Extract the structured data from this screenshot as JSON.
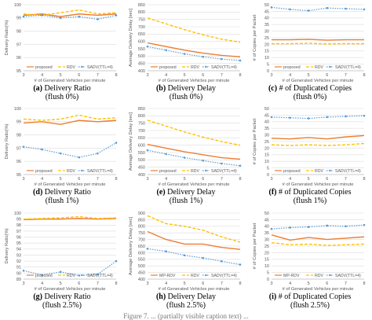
{
  "figure_footer": "Figure 7. ... (partially visible caption text) ...",
  "colors": {
    "proposed": "#ED7D31",
    "rdv": "#FFC000",
    "sadv": "#5B9BD5",
    "grid": "#dcdcdc",
    "axis": "#bfbfbf",
    "text": "#595959"
  },
  "chart_data": [
    {
      "id": "a",
      "type": "line",
      "xlabel": "# of Generated Vehicles per minute",
      "ylabel": "Delivery Ratio(%)",
      "ylim": [
        95,
        100
      ],
      "yticks": [
        95,
        96,
        97,
        98,
        99,
        100
      ],
      "x": [
        3,
        4,
        5,
        6,
        7,
        8
      ],
      "series": [
        {
          "name": "proposed",
          "style": "proposed",
          "values": [
            99.2,
            99.3,
            99.1,
            99.3,
            99.2,
            99.3
          ]
        },
        {
          "name": "RDV",
          "style": "rdv",
          "values": [
            99.3,
            99.2,
            99.4,
            99.6,
            99.3,
            99.4
          ]
        },
        {
          "name": "SADV(TTL=4)",
          "style": "sadv",
          "values": [
            99.1,
            99.2,
            99.0,
            99.1,
            98.9,
            99.2
          ]
        }
      ],
      "caption_letter": "(a)",
      "caption_title": "Delivery Ratio",
      "caption_sub": "(flush 0%)"
    },
    {
      "id": "b",
      "type": "line",
      "xlabel": "# of Generated Vehicles per minute",
      "ylabel": "Average Delivery Delay [sec]",
      "ylim": [
        400,
        850
      ],
      "yticks": [
        400,
        450,
        500,
        550,
        600,
        650,
        700,
        750,
        800,
        850
      ],
      "x": [
        3,
        4,
        5,
        6,
        7,
        8
      ],
      "series": [
        {
          "name": "proposed",
          "style": "proposed",
          "values": [
            590,
            565,
            540,
            520,
            505,
            495
          ]
        },
        {
          "name": "RDV",
          "style": "rdv",
          "values": [
            760,
            720,
            680,
            645,
            615,
            595
          ]
        },
        {
          "name": "SADV(TTL=4)",
          "style": "sadv",
          "values": [
            565,
            540,
            515,
            495,
            480,
            470
          ]
        }
      ],
      "caption_letter": "(b)",
      "caption_title": "Delivery Delay",
      "caption_sub": "(flush 0%)"
    },
    {
      "id": "c",
      "type": "line",
      "xlabel": "# of Generated Vehicles per minute",
      "ylabel": "# of Copies per Packet",
      "ylim": [
        0,
        50
      ],
      "yticks": [
        0,
        5,
        10,
        15,
        20,
        25,
        30,
        35,
        40,
        45,
        50
      ],
      "x": [
        3,
        4,
        5,
        6,
        7,
        8
      ],
      "series": [
        {
          "name": "proposed",
          "style": "proposed",
          "values": [
            23.5,
            23.5,
            23.8,
            23.2,
            23.5,
            23.5
          ]
        },
        {
          "name": "RDV",
          "style": "rdv",
          "values": [
            20.5,
            20.5,
            20.8,
            20.3,
            20.5,
            20.5
          ]
        },
        {
          "name": "SADV(TTL=4)",
          "style": "sadv",
          "values": [
            48,
            46.5,
            45.5,
            47.5,
            47,
            46.5
          ]
        }
      ],
      "caption_letter": "(c)",
      "caption_title": "# of Duplicated Copies",
      "caption_sub": "(flush 0%)"
    },
    {
      "id": "d",
      "type": "line",
      "xlabel": "# of Generated Vehicles per minute",
      "ylabel": "Delivery Ratio(%)",
      "ylim": [
        95,
        100
      ],
      "yticks": [
        95,
        96,
        97,
        98,
        99,
        100
      ],
      "x": [
        3,
        4,
        5,
        6,
        7,
        8
      ],
      "series": [
        {
          "name": "proposed",
          "style": "proposed",
          "values": [
            98.9,
            99.0,
            98.8,
            99.1,
            99.0,
            99.1
          ]
        },
        {
          "name": "RDV",
          "style": "rdv",
          "values": [
            99.2,
            99.1,
            99.2,
            99.5,
            99.2,
            99.3
          ]
        },
        {
          "name": "SADV(TTL=4)",
          "style": "sadv",
          "values": [
            97.1,
            96.9,
            96.6,
            96.3,
            96.6,
            97.4
          ]
        }
      ],
      "caption_letter": "(d)",
      "caption_title": "Delivery Ratio",
      "caption_sub": "(flush 1%)"
    },
    {
      "id": "e",
      "type": "line",
      "xlabel": "# of Generated Vehicles per minute",
      "ylabel": "Average Delivery Delay [sec]",
      "ylim": [
        400,
        850
      ],
      "yticks": [
        400,
        450,
        500,
        550,
        600,
        650,
        700,
        750,
        800,
        850
      ],
      "x": [
        3,
        4,
        5,
        6,
        7,
        8
      ],
      "series": [
        {
          "name": "proposed",
          "style": "proposed",
          "values": [
            605,
            580,
            555,
            535,
            515,
            505
          ]
        },
        {
          "name": "RDV",
          "style": "rdv",
          "values": [
            770,
            730,
            690,
            655,
            625,
            600
          ]
        },
        {
          "name": "SADV(TTL=4)",
          "style": "sadv",
          "values": [
            565,
            540,
            515,
            495,
            475,
            460
          ]
        }
      ],
      "caption_letter": "(e)",
      "caption_title": "Delivery Delay",
      "caption_sub": "(flush 1%)"
    },
    {
      "id": "f",
      "type": "line",
      "xlabel": "# of Generated Vehicles per minute",
      "ylabel": "# of Copies per Packet",
      "ylim": [
        0,
        50
      ],
      "yticks": [
        0,
        5,
        10,
        15,
        20,
        25,
        30,
        35,
        40,
        45,
        50
      ],
      "x": [
        3,
        4,
        5,
        6,
        7,
        8
      ],
      "series": [
        {
          "name": "proposed",
          "style": "proposed",
          "values": [
            27.5,
            27.0,
            28.0,
            27.0,
            28.5,
            29.5
          ]
        },
        {
          "name": "RDV",
          "style": "rdv",
          "values": [
            22.5,
            22.0,
            22.5,
            22.0,
            22.5,
            23.5
          ]
        },
        {
          "name": "SADV(TTL=4)",
          "style": "sadv",
          "values": [
            43.5,
            43.0,
            42.5,
            43.5,
            44.0,
            44.5
          ]
        }
      ],
      "caption_letter": "(f)",
      "caption_title": "# of Duplicated Copies",
      "caption_sub": "(flush 1%)"
    },
    {
      "id": "g",
      "type": "line",
      "xlabel": "# of Generated Vehicles per minute",
      "ylabel": "Delivery Ratio(%)",
      "ylim": [
        89,
        100
      ],
      "yticks": [
        89,
        90,
        91,
        92,
        93,
        94,
        95,
        96,
        97,
        98,
        99,
        100
      ],
      "x": [
        3,
        4,
        5,
        6,
        7,
        8
      ],
      "series": [
        {
          "name": "proposed",
          "style": "proposed",
          "values": [
            98.9,
            99.0,
            99.0,
            99.1,
            99.0,
            99.1
          ]
        },
        {
          "name": "RDV",
          "style": "rdv",
          "values": [
            99.0,
            99.1,
            99.2,
            99.4,
            99.1,
            99.2
          ]
        },
        {
          "name": "SADV(TTL=4)",
          "style": "sadv",
          "values": [
            90.4,
            89.7,
            90.2,
            89.6,
            89.8,
            92.0
          ]
        }
      ],
      "caption_letter": "(g)",
      "caption_title": "Delivery Ratio",
      "caption_sub": "(flush 2.5%)"
    },
    {
      "id": "h",
      "type": "line",
      "xlabel": "# of Generated Vehicles per minute",
      "ylabel": "Average Delivery Delay [sec]",
      "ylim": [
        400,
        900
      ],
      "yticks": [
        400,
        450,
        500,
        550,
        600,
        650,
        700,
        750,
        800,
        850,
        900
      ],
      "x": [
        3,
        4,
        5,
        6,
        7,
        8
      ],
      "series": [
        {
          "name": "MP-RDV",
          "style": "proposed",
          "values": [
            760,
            700,
            665,
            665,
            640,
            625
          ]
        },
        {
          "name": "RDV",
          "style": "rdv",
          "values": [
            880,
            820,
            800,
            770,
            720,
            680
          ]
        },
        {
          "name": "SADV(TTL=4)",
          "style": "sadv",
          "values": [
            630,
            610,
            580,
            560,
            535,
            510
          ]
        }
      ],
      "caption_letter": "(h)",
      "caption_title": "Delivery Delay",
      "caption_sub": "(flush 2.5%)"
    },
    {
      "id": "i",
      "type": "line",
      "xlabel": "# of Generated Vehicles per minute",
      "ylabel": "# of Copies per Packet",
      "ylim": [
        0,
        50
      ],
      "yticks": [
        0,
        5,
        10,
        15,
        20,
        25,
        30,
        35,
        40,
        45,
        50
      ],
      "x": [
        3,
        4,
        5,
        6,
        7,
        8
      ],
      "series": [
        {
          "name": "MP-RDV",
          "style": "proposed",
          "values": [
            33.5,
            29.5,
            31.5,
            30.0,
            31.0,
            32.0
          ]
        },
        {
          "name": "RDV",
          "style": "rdv",
          "values": [
            27.5,
            26.0,
            26.5,
            25.5,
            26.0,
            26.5
          ]
        },
        {
          "name": "SADV(TTL=4)",
          "style": "sadv",
          "values": [
            38.0,
            39.0,
            39.5,
            40.5,
            40.0,
            41.0
          ]
        }
      ],
      "caption_letter": "(i)",
      "caption_title": "# of Duplicated Copies",
      "caption_sub": "(flush 2.5%)"
    }
  ]
}
